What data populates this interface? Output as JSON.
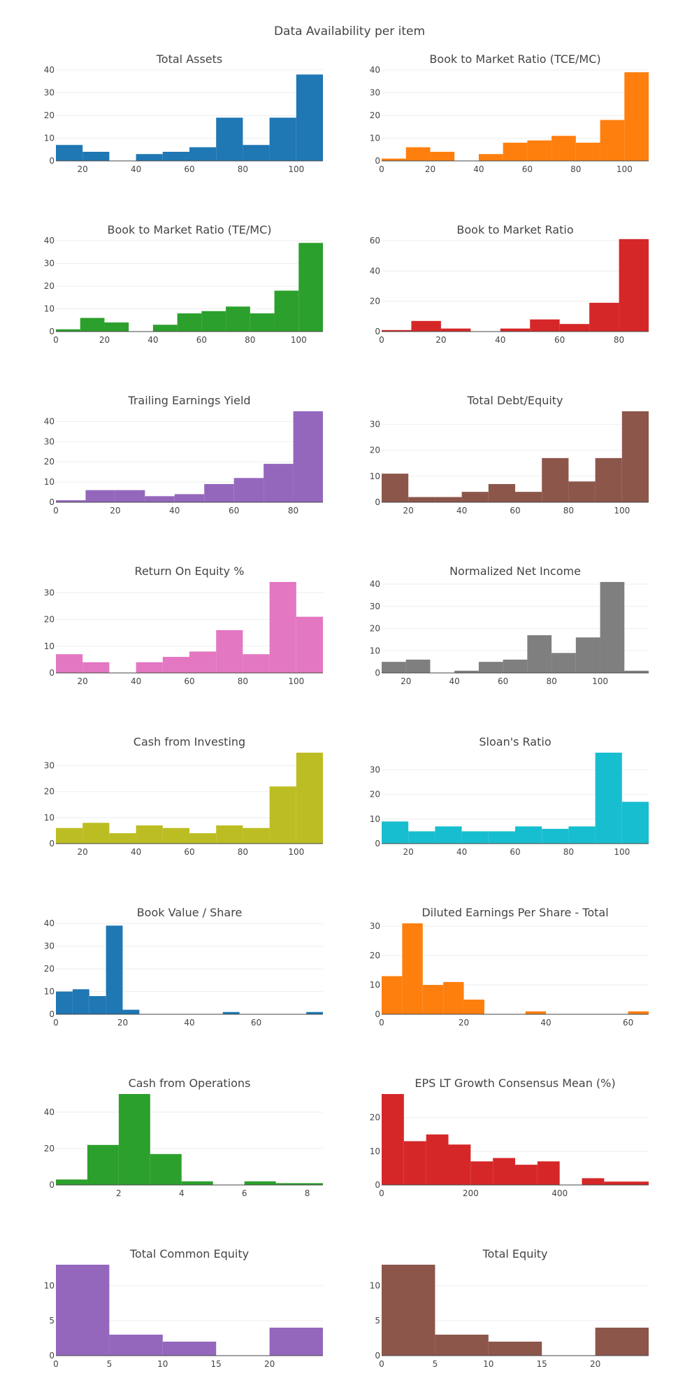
{
  "title": "Data Availability per item",
  "chart_data": [
    {
      "type": "bar",
      "title": "Total Assets",
      "xlim": [
        10,
        110
      ],
      "ylim": [
        0,
        40
      ],
      "xticks": [
        20,
        40,
        60,
        80,
        100
      ],
      "yticks": [
        0,
        10,
        20,
        30,
        40
      ],
      "color": "#1f77b4",
      "bins": [
        [
          10,
          20,
          7
        ],
        [
          20,
          30,
          4
        ],
        [
          30,
          40,
          0
        ],
        [
          40,
          50,
          3
        ],
        [
          50,
          60,
          4
        ],
        [
          60,
          70,
          6
        ],
        [
          70,
          80,
          19
        ],
        [
          80,
          90,
          7
        ],
        [
          90,
          100,
          19
        ],
        [
          100,
          110,
          38
        ]
      ]
    },
    {
      "type": "bar",
      "title": "Book to Market Ratio (TCE/MC)",
      "xlim": [
        0,
        110
      ],
      "ylim": [
        0,
        40
      ],
      "xticks": [
        0,
        20,
        40,
        60,
        80,
        100
      ],
      "yticks": [
        0,
        10,
        20,
        30,
        40
      ],
      "color": "#ff7f0e",
      "bins": [
        [
          0,
          10,
          1
        ],
        [
          10,
          20,
          6
        ],
        [
          20,
          30,
          4
        ],
        [
          30,
          40,
          0
        ],
        [
          40,
          50,
          3
        ],
        [
          50,
          60,
          8
        ],
        [
          60,
          70,
          9
        ],
        [
          70,
          80,
          11
        ],
        [
          80,
          90,
          8
        ],
        [
          90,
          100,
          18
        ],
        [
          100,
          110,
          39
        ]
      ]
    },
    {
      "type": "bar",
      "title": "Book to Market Ratio (TE/MC)",
      "xlim": [
        0,
        110
      ],
      "ylim": [
        0,
        40
      ],
      "xticks": [
        0,
        20,
        40,
        60,
        80,
        100
      ],
      "yticks": [
        0,
        10,
        20,
        30,
        40
      ],
      "color": "#2ca02c",
      "bins": [
        [
          0,
          10,
          1
        ],
        [
          10,
          20,
          6
        ],
        [
          20,
          30,
          4
        ],
        [
          30,
          40,
          0
        ],
        [
          40,
          50,
          3
        ],
        [
          50,
          60,
          8
        ],
        [
          60,
          70,
          9
        ],
        [
          70,
          80,
          11
        ],
        [
          80,
          90,
          8
        ],
        [
          90,
          100,
          18
        ],
        [
          100,
          110,
          39
        ]
      ]
    },
    {
      "type": "bar",
      "title": "Book to Market Ratio",
      "xlim": [
        0,
        90
      ],
      "ylim": [
        0,
        60
      ],
      "xticks": [
        0,
        20,
        40,
        60,
        80
      ],
      "yticks": [
        0,
        20,
        40,
        60
      ],
      "color": "#d62728",
      "bins": [
        [
          0,
          10,
          1
        ],
        [
          10,
          20,
          7
        ],
        [
          20,
          30,
          2
        ],
        [
          30,
          40,
          0
        ],
        [
          40,
          50,
          2
        ],
        [
          50,
          60,
          8
        ],
        [
          60,
          70,
          5
        ],
        [
          70,
          80,
          19
        ],
        [
          80,
          90,
          61
        ]
      ]
    },
    {
      "type": "bar",
      "title": "Trailing Earnings Yield",
      "xlim": [
        0,
        90
      ],
      "ylim": [
        0,
        45
      ],
      "xticks": [
        0,
        20,
        40,
        60,
        80
      ],
      "yticks": [
        0,
        10,
        20,
        30,
        40
      ],
      "color": "#9467bd",
      "bins": [
        [
          0,
          10,
          1
        ],
        [
          10,
          20,
          6
        ],
        [
          20,
          30,
          6
        ],
        [
          30,
          40,
          3
        ],
        [
          40,
          50,
          4
        ],
        [
          50,
          60,
          9
        ],
        [
          60,
          70,
          12
        ],
        [
          70,
          80,
          19
        ],
        [
          80,
          90,
          45
        ]
      ]
    },
    {
      "type": "bar",
      "title": "Total Debt/Equity",
      "xlim": [
        10,
        110
      ],
      "ylim": [
        0,
        35
      ],
      "xticks": [
        20,
        40,
        60,
        80,
        100
      ],
      "yticks": [
        0,
        10,
        20,
        30
      ],
      "color": "#8c564b",
      "bins": [
        [
          10,
          20,
          11
        ],
        [
          20,
          30,
          2
        ],
        [
          30,
          40,
          2
        ],
        [
          40,
          50,
          4
        ],
        [
          50,
          60,
          7
        ],
        [
          60,
          70,
          4
        ],
        [
          70,
          80,
          17
        ],
        [
          80,
          90,
          8
        ],
        [
          90,
          100,
          17
        ],
        [
          100,
          110,
          35
        ]
      ]
    },
    {
      "type": "bar",
      "title": "Return On Equity %",
      "xlim": [
        10,
        110
      ],
      "ylim": [
        0,
        34
      ],
      "xticks": [
        20,
        40,
        60,
        80,
        100
      ],
      "yticks": [
        0,
        10,
        20,
        30
      ],
      "color": "#e377c2",
      "bins": [
        [
          10,
          20,
          7
        ],
        [
          20,
          30,
          4
        ],
        [
          30,
          40,
          0
        ],
        [
          40,
          50,
          4
        ],
        [
          50,
          60,
          6
        ],
        [
          60,
          70,
          8
        ],
        [
          70,
          80,
          16
        ],
        [
          80,
          90,
          7
        ],
        [
          90,
          100,
          34
        ],
        [
          100,
          110,
          21
        ]
      ]
    },
    {
      "type": "bar",
      "title": "Normalized Net Income",
      "xlim": [
        10,
        120
      ],
      "ylim": [
        0,
        41
      ],
      "xticks": [
        20,
        40,
        60,
        80,
        100
      ],
      "yticks": [
        0,
        10,
        20,
        30,
        40
      ],
      "color": "#7f7f7f",
      "bins": [
        [
          10,
          20,
          5
        ],
        [
          20,
          30,
          6
        ],
        [
          30,
          40,
          0
        ],
        [
          40,
          50,
          1
        ],
        [
          50,
          60,
          5
        ],
        [
          60,
          70,
          6
        ],
        [
          70,
          80,
          17
        ],
        [
          80,
          90,
          9
        ],
        [
          90,
          100,
          16
        ],
        [
          100,
          110,
          41
        ],
        [
          110,
          120,
          1
        ]
      ]
    },
    {
      "type": "bar",
      "title": "Cash from Investing",
      "xlim": [
        10,
        110
      ],
      "ylim": [
        0,
        35
      ],
      "xticks": [
        20,
        40,
        60,
        80,
        100
      ],
      "yticks": [
        0,
        10,
        20,
        30
      ],
      "color": "#bcbd22",
      "bins": [
        [
          10,
          20,
          6
        ],
        [
          20,
          30,
          8
        ],
        [
          30,
          40,
          4
        ],
        [
          40,
          50,
          7
        ],
        [
          50,
          60,
          6
        ],
        [
          60,
          70,
          4
        ],
        [
          70,
          80,
          7
        ],
        [
          80,
          90,
          6
        ],
        [
          90,
          100,
          22
        ],
        [
          100,
          110,
          35
        ]
      ]
    },
    {
      "type": "bar",
      "title": "Sloan's Ratio",
      "xlim": [
        10,
        110
      ],
      "ylim": [
        0,
        37
      ],
      "xticks": [
        20,
        40,
        60,
        80,
        100
      ],
      "yticks": [
        0,
        10,
        20,
        30
      ],
      "color": "#17becf",
      "bins": [
        [
          10,
          20,
          9
        ],
        [
          20,
          30,
          5
        ],
        [
          30,
          40,
          7
        ],
        [
          40,
          50,
          5
        ],
        [
          50,
          60,
          5
        ],
        [
          60,
          70,
          7
        ],
        [
          70,
          80,
          6
        ],
        [
          80,
          90,
          7
        ],
        [
          90,
          100,
          37
        ],
        [
          100,
          110,
          17
        ]
      ]
    },
    {
      "type": "bar",
      "title": "Book Value / Share",
      "xlim": [
        0,
        80
      ],
      "ylim": [
        0,
        40
      ],
      "xticks": [
        0,
        20,
        40,
        60
      ],
      "yticks": [
        0,
        10,
        20,
        30,
        40
      ],
      "color": "#1f77b4",
      "bins": [
        [
          0,
          5,
          10
        ],
        [
          5,
          10,
          11
        ],
        [
          10,
          15,
          8
        ],
        [
          15,
          20,
          39
        ],
        [
          20,
          25,
          2
        ],
        [
          25,
          50,
          0
        ],
        [
          50,
          55,
          1
        ],
        [
          55,
          75,
          0
        ],
        [
          75,
          80,
          1
        ]
      ]
    },
    {
      "type": "bar",
      "title": "Diluted Earnings Per Share - Total",
      "xlim": [
        0,
        65
      ],
      "ylim": [
        0,
        31
      ],
      "xticks": [
        0,
        20,
        40,
        60
      ],
      "yticks": [
        0,
        10,
        20,
        30
      ],
      "color": "#ff7f0e",
      "bins": [
        [
          0,
          5,
          13
        ],
        [
          5,
          10,
          31
        ],
        [
          10,
          15,
          10
        ],
        [
          15,
          20,
          11
        ],
        [
          20,
          25,
          5
        ],
        [
          25,
          35,
          0
        ],
        [
          35,
          40,
          1
        ],
        [
          40,
          60,
          0
        ],
        [
          60,
          65,
          1
        ]
      ]
    },
    {
      "type": "bar",
      "title": "Cash from Operations",
      "xlim": [
        0,
        8.5
      ],
      "ylim": [
        0,
        50
      ],
      "xticks": [
        2,
        4,
        6,
        8
      ],
      "yticks": [
        0,
        20,
        40
      ],
      "color": "#2ca02c",
      "bins": [
        [
          0,
          1,
          3
        ],
        [
          1,
          2,
          22
        ],
        [
          2,
          3,
          50
        ],
        [
          3,
          4,
          17
        ],
        [
          4,
          5,
          2
        ],
        [
          5,
          6,
          0
        ],
        [
          6,
          7,
          2
        ],
        [
          7,
          8.5,
          1
        ]
      ]
    },
    {
      "type": "bar",
      "title": "EPS LT Growth Consensus Mean (%)",
      "xlim": [
        0,
        600
      ],
      "ylim": [
        0,
        27
      ],
      "xticks": [
        0,
        200,
        400
      ],
      "yticks": [
        0,
        10,
        20
      ],
      "color": "#d62728",
      "bins": [
        [
          0,
          50,
          27
        ],
        [
          50,
          100,
          13
        ],
        [
          100,
          150,
          15
        ],
        [
          150,
          200,
          12
        ],
        [
          200,
          250,
          7
        ],
        [
          250,
          300,
          8
        ],
        [
          300,
          350,
          6
        ],
        [
          350,
          400,
          7
        ],
        [
          400,
          450,
          0
        ],
        [
          450,
          500,
          2
        ],
        [
          500,
          600,
          1
        ]
      ]
    },
    {
      "type": "bar",
      "title": "Total Common Equity",
      "xlim": [
        0,
        25
      ],
      "ylim": [
        0,
        13
      ],
      "xticks": [
        0,
        5,
        10,
        15,
        20
      ],
      "yticks": [
        0,
        5,
        10
      ],
      "color": "#9467bd",
      "bins": [
        [
          0,
          5,
          13
        ],
        [
          5,
          10,
          3
        ],
        [
          10,
          15,
          2
        ],
        [
          15,
          20,
          0
        ],
        [
          20,
          25,
          4
        ]
      ]
    },
    {
      "type": "bar",
      "title": "Total Equity",
      "xlim": [
        0,
        25
      ],
      "ylim": [
        0,
        13
      ],
      "xticks": [
        0,
        5,
        10,
        15,
        20
      ],
      "yticks": [
        0,
        5,
        10
      ],
      "color": "#8c564b",
      "bins": [
        [
          0,
          5,
          13
        ],
        [
          5,
          10,
          3
        ],
        [
          10,
          15,
          2
        ],
        [
          15,
          20,
          0
        ],
        [
          20,
          25,
          4
        ]
      ]
    }
  ]
}
